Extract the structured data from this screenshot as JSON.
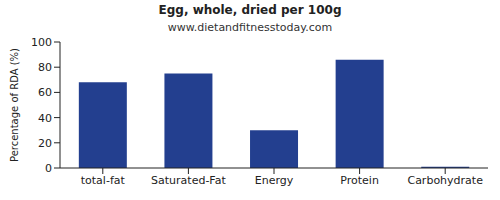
{
  "chart_data": {
    "type": "bar",
    "title": "Egg, whole, dried per 100g",
    "subtitle": "www.dietandfitnesstoday.com",
    "y_label": "Percentage of RDA (%)",
    "categories": [
      "total-fat",
      "Saturated-Fat",
      "Energy",
      "Protein",
      "Carbohydrate"
    ],
    "values": [
      68,
      75,
      30,
      86,
      1
    ],
    "color": "#233f8f",
    "ylim": [
      0,
      100
    ],
    "yticks": [
      0,
      20,
      40,
      60,
      80,
      100
    ],
    "grid": false
  }
}
